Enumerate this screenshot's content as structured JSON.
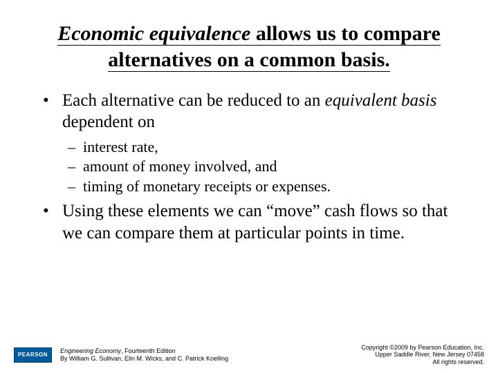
{
  "title": {
    "italic_part": "Economic equivalence",
    "rest": " allows us to compare alternatives on a common basis."
  },
  "bullets": {
    "b1_before_italic": "Each alternative can be reduced to an ",
    "b1_italic": "equivalent basis",
    "b1_after_italic": " dependent on",
    "sub": {
      "s1": "interest rate,",
      "s2": "amount of money involved, and",
      "s3": "timing of monetary receipts or expenses."
    },
    "b2": "Using these elements we can “move” cash flows so that we can compare them at particular points in time."
  },
  "footer": {
    "logo_text": "PEARSON",
    "book_title": "Engineering Economy",
    "edition": ", Fourteenth Edition",
    "authors": "By William G. Sullivan, Elin M. Wicks, and C. Patrick Koelling",
    "copyright_line1": "Copyright ©2009 by Pearson Education, Inc.",
    "copyright_line2": "Upper Saddle River, New Jersey 07458",
    "copyright_line3": "All rights reserved."
  },
  "colors": {
    "text": "#000000",
    "background": "#ffffff",
    "logo_bg": "#005a9c"
  }
}
